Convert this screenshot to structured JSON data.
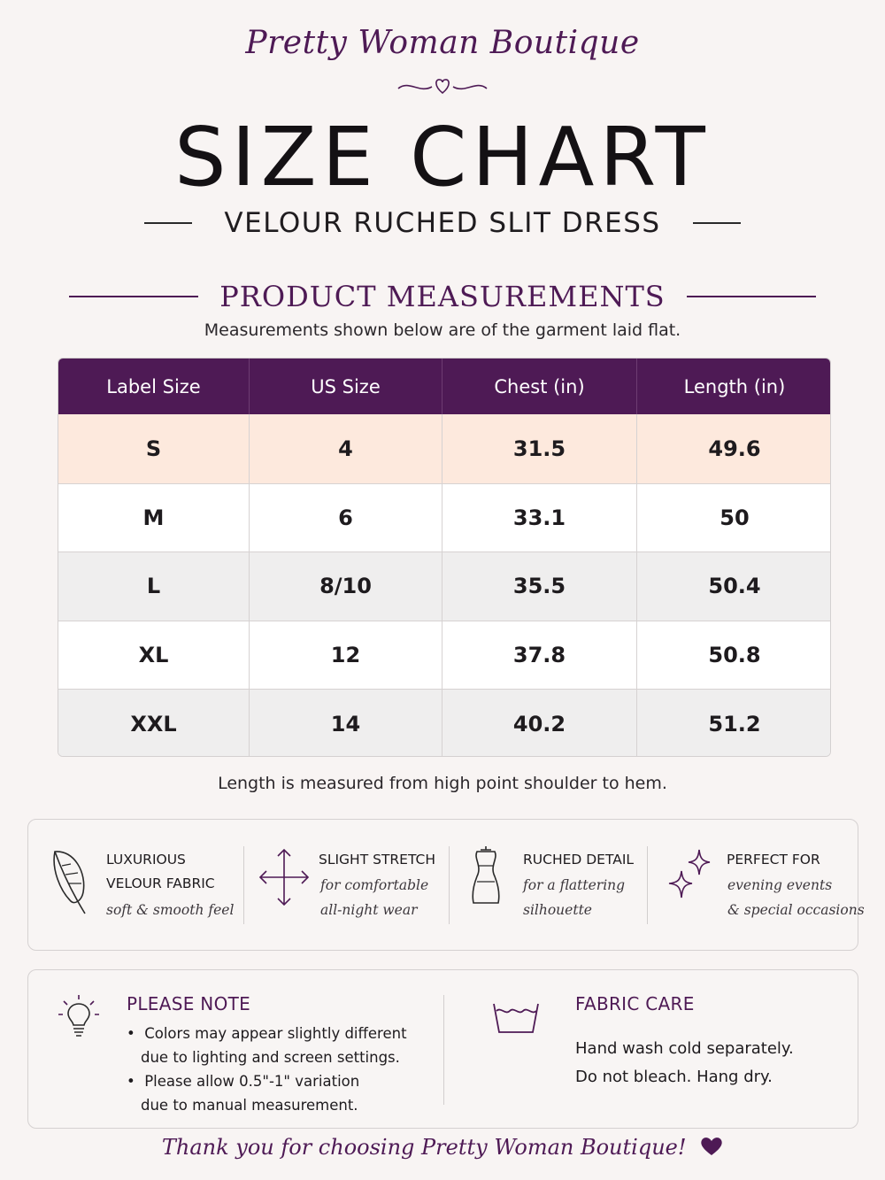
{
  "brand": "Pretty Woman Boutique",
  "title": "SIZE CHART",
  "subtitle": "VELOUR RUCHED SLIT DRESS",
  "section_title": "PRODUCT MEASUREMENTS",
  "intro": "Measurements shown below are of the garment laid flat.",
  "table": {
    "headers": [
      "Label Size",
      "US Size",
      "Chest (in)",
      "Length (in)"
    ],
    "rows": [
      [
        "S",
        "4",
        "31.5",
        "49.6"
      ],
      [
        "M",
        "6",
        "33.1",
        "50"
      ],
      [
        "L",
        "8/10",
        "35.5",
        "50.4"
      ],
      [
        "XL",
        "12",
        "37.8",
        "50.8"
      ],
      [
        "XXL",
        "14",
        "40.2",
        "51.2"
      ]
    ]
  },
  "footnote": "Length is measured from high point shoulder to hem.",
  "features": [
    {
      "icon": "feather-icon",
      "title_lines": [
        "LUXURIOUS",
        "VELOUR FABRIC"
      ],
      "sub_lines": [
        "soft & smooth feel"
      ]
    },
    {
      "icon": "stretch-arrows-icon",
      "title_lines": [
        "SLIGHT STRETCH"
      ],
      "sub_lines": [
        "for comfortable",
        "all-night wear"
      ]
    },
    {
      "icon": "dress-form-icon",
      "title_lines": [
        "RUCHED DETAIL"
      ],
      "sub_lines": [
        "for a flattering",
        "silhouette"
      ]
    },
    {
      "icon": "sparkles-icon",
      "title_lines": [
        "PERFECT FOR"
      ],
      "sub_lines": [
        "evening events",
        "& special occasions"
      ]
    }
  ],
  "notes": {
    "please_note": {
      "title": "PLEASE NOTE",
      "bullets": [
        [
          "Colors may appear slightly different",
          "due to lighting and screen settings."
        ],
        [
          "Please allow 0.5\"-1\" variation",
          "due to manual measurement."
        ]
      ]
    },
    "fabric_care": {
      "title": "FABRIC CARE",
      "lines": [
        "Hand wash cold separately.",
        "Do not bleach. Hang dry."
      ]
    }
  },
  "thanks": "Thank you for choosing Pretty Woman Boutique!",
  "colors": {
    "accent": "#4e1a55",
    "header_bg": "#4e1a55",
    "row_highlight": "#fde9dd",
    "row_alt": "#efeeee",
    "page_bg": "#f8f4f3"
  }
}
